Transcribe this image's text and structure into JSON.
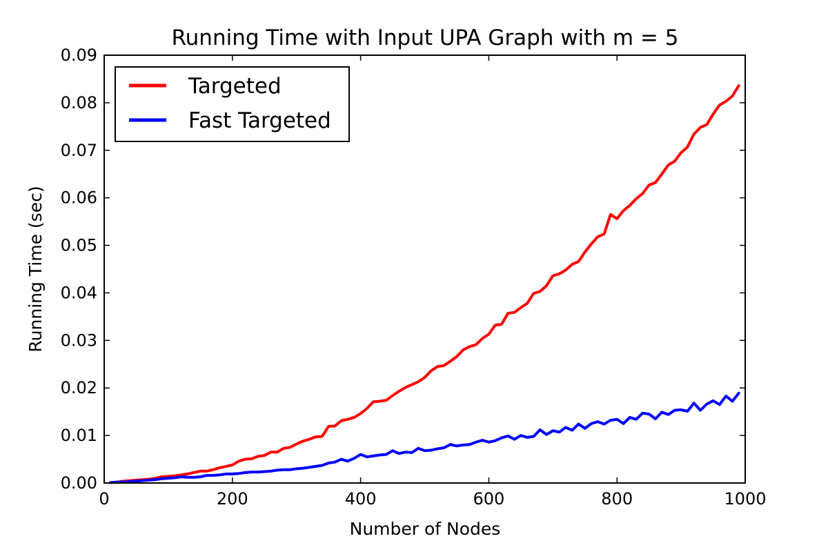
{
  "chart_data": {
    "type": "line",
    "title": "Running Time with Input UPA Graph with m = 5",
    "xlabel": "Number of Nodes",
    "ylabel": "Running Time (sec)",
    "xlim": [
      0,
      1000
    ],
    "ylim": [
      0,
      0.09
    ],
    "x_ticks": [
      0,
      200,
      400,
      600,
      800,
      1000
    ],
    "x_tick_labels": [
      "0",
      "200",
      "400",
      "600",
      "800",
      "1000"
    ],
    "y_ticks": [
      0,
      0.01,
      0.02,
      0.03,
      0.04,
      0.05,
      0.06,
      0.07,
      0.08,
      0.09
    ],
    "y_tick_labels": [
      "0.00",
      "0.01",
      "0.02",
      "0.03",
      "0.04",
      "0.05",
      "0.06",
      "0.07",
      "0.08",
      "0.09"
    ],
    "grid": false,
    "legend_position": "top-left",
    "series": [
      {
        "name": "Targeted",
        "color": "#ff0000",
        "x": [
          10,
          20,
          30,
          40,
          50,
          60,
          70,
          80,
          90,
          100,
          110,
          120,
          130,
          140,
          150,
          160,
          170,
          180,
          190,
          200,
          210,
          220,
          230,
          240,
          250,
          260,
          270,
          280,
          290,
          300,
          310,
          320,
          330,
          340,
          350,
          360,
          370,
          380,
          390,
          400,
          410,
          420,
          430,
          440,
          450,
          460,
          470,
          480,
          490,
          500,
          510,
          520,
          530,
          540,
          550,
          560,
          570,
          580,
          590,
          600,
          610,
          620,
          630,
          640,
          650,
          660,
          670,
          680,
          690,
          700,
          710,
          720,
          730,
          740,
          750,
          760,
          770,
          780,
          790,
          800,
          810,
          820,
          830,
          840,
          850,
          860,
          870,
          880,
          890,
          900,
          910,
          920,
          930,
          940,
          950,
          960,
          970,
          980,
          990
        ],
        "y": [
          0.0001,
          0.0002,
          0.0004,
          0.0005,
          0.0006,
          0.0007,
          0.0008,
          0.001,
          0.0013,
          0.0014,
          0.0015,
          0.0017,
          0.0019,
          0.0022,
          0.0025,
          0.0025,
          0.0028,
          0.0032,
          0.0035,
          0.0038,
          0.0046,
          0.005,
          0.0051,
          0.0056,
          0.0058,
          0.0065,
          0.0065,
          0.0073,
          0.0075,
          0.0082,
          0.0088,
          0.0092,
          0.0097,
          0.0098,
          0.0119,
          0.012,
          0.0131,
          0.0134,
          0.0138,
          0.0146,
          0.0157,
          0.0171,
          0.0172,
          0.0174,
          0.0184,
          0.0193,
          0.0201,
          0.0207,
          0.0213,
          0.0222,
          0.0236,
          0.0245,
          0.0247,
          0.0256,
          0.0266,
          0.028,
          0.0287,
          0.0291,
          0.0304,
          0.0313,
          0.0332,
          0.0334,
          0.0357,
          0.0359,
          0.0369,
          0.0378,
          0.0399,
          0.0403,
          0.0415,
          0.0436,
          0.044,
          0.0448,
          0.046,
          0.0466,
          0.0486,
          0.0503,
          0.0518,
          0.0524,
          0.0565,
          0.0556,
          0.0573,
          0.0584,
          0.0598,
          0.0609,
          0.0627,
          0.0632,
          0.065,
          0.0669,
          0.0677,
          0.0695,
          0.0707,
          0.0734,
          0.0748,
          0.0754,
          0.0776,
          0.0795,
          0.0803,
          0.0814,
          0.0836
        ]
      },
      {
        "name": "Fast Targeted",
        "color": "#0000ff",
        "x": [
          10,
          20,
          30,
          40,
          50,
          60,
          70,
          80,
          90,
          100,
          110,
          120,
          130,
          140,
          150,
          160,
          170,
          180,
          190,
          200,
          210,
          220,
          230,
          240,
          250,
          260,
          270,
          280,
          290,
          300,
          310,
          320,
          330,
          340,
          350,
          360,
          370,
          380,
          390,
          400,
          410,
          420,
          430,
          440,
          450,
          460,
          470,
          480,
          490,
          500,
          510,
          520,
          530,
          540,
          550,
          560,
          570,
          580,
          590,
          600,
          610,
          620,
          630,
          640,
          650,
          660,
          670,
          680,
          690,
          700,
          710,
          720,
          730,
          740,
          750,
          760,
          770,
          780,
          790,
          800,
          810,
          820,
          830,
          840,
          850,
          860,
          870,
          880,
          890,
          900,
          910,
          920,
          930,
          940,
          950,
          960,
          970,
          980,
          990
        ],
        "y": [
          0.0001,
          0.0002,
          0.0002,
          0.0003,
          0.0004,
          0.0005,
          0.0006,
          0.0007,
          0.0009,
          0.001,
          0.0011,
          0.0013,
          0.0012,
          0.0012,
          0.0013,
          0.0016,
          0.0016,
          0.0017,
          0.0019,
          0.0019,
          0.002,
          0.0022,
          0.0023,
          0.0023,
          0.0024,
          0.0025,
          0.0027,
          0.0028,
          0.0028,
          0.003,
          0.0031,
          0.0033,
          0.0035,
          0.0037,
          0.0042,
          0.0044,
          0.005,
          0.0046,
          0.0052,
          0.006,
          0.0055,
          0.0057,
          0.0059,
          0.006,
          0.0068,
          0.0062,
          0.0065,
          0.0064,
          0.0073,
          0.0068,
          0.0069,
          0.0072,
          0.0074,
          0.0081,
          0.0078,
          0.008,
          0.0081,
          0.0086,
          0.009,
          0.0086,
          0.0089,
          0.0095,
          0.0099,
          0.0092,
          0.01,
          0.0096,
          0.0098,
          0.0112,
          0.0102,
          0.011,
          0.0107,
          0.0117,
          0.0111,
          0.0124,
          0.0115,
          0.0125,
          0.0129,
          0.0124,
          0.0132,
          0.0134,
          0.0125,
          0.0138,
          0.0134,
          0.0147,
          0.0145,
          0.0135,
          0.0149,
          0.0144,
          0.0153,
          0.0154,
          0.0151,
          0.0168,
          0.0153,
          0.0166,
          0.0173,
          0.0165,
          0.0183,
          0.0172,
          0.0189
        ]
      }
    ]
  }
}
